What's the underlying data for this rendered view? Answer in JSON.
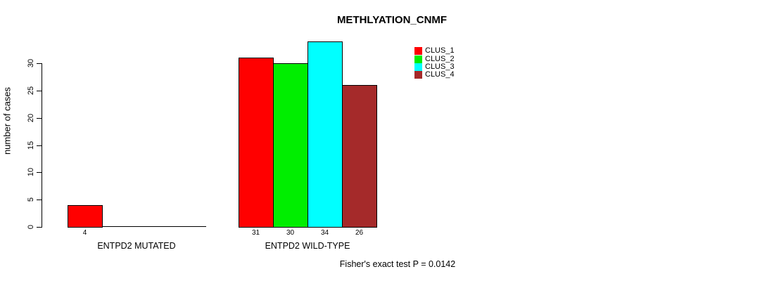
{
  "title": "METHLYATION_CNMF",
  "ylabel": "number of cases",
  "caption": "Fisher's exact test P = 0.0142",
  "chart_data": {
    "type": "bar",
    "grouped": true,
    "categories": [
      "ENTPD2 MUTATED",
      "ENTPD2 WILD-TYPE"
    ],
    "series": [
      {
        "name": "CLUS_1",
        "color": "#ff0000",
        "values": [
          4,
          31
        ]
      },
      {
        "name": "CLUS_2",
        "color": "#00ee00",
        "values": [
          0,
          30
        ]
      },
      {
        "name": "CLUS_3",
        "color": "#00ffff",
        "values": [
          0,
          34
        ]
      },
      {
        "name": "CLUS_4",
        "color": "#a52a2a",
        "values": [
          0,
          26
        ]
      }
    ],
    "bar_value_labels": [
      [
        "4",
        "",
        "",
        ""
      ],
      [
        "31",
        "30",
        "34",
        "26"
      ]
    ],
    "yticks": [
      0,
      5,
      10,
      15,
      20,
      25,
      30
    ],
    "ylim": [
      0,
      34
    ],
    "xlabel": "",
    "ylabel": "number of cases",
    "title": "METHLYATION_CNMF",
    "annotation": "Fisher's exact test P = 0.0142",
    "legend_entries": [
      "CLUS_1",
      "CLUS_2",
      "CLUS_3",
      "CLUS_4"
    ],
    "legend_position": "top-right",
    "grid": false,
    "bar_border_color": "#000000",
    "text_color": "#000000",
    "background_color": "#ffffff"
  }
}
